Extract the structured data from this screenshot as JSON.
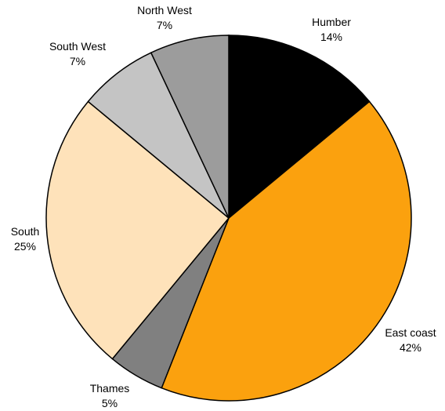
{
  "chart_data": {
    "type": "pie",
    "title": "",
    "start_angle_deg": 0,
    "direction": "clockwise",
    "slices": [
      {
        "label": "Humber",
        "value": 14,
        "value_label": "14%",
        "color": "#000000"
      },
      {
        "label": "East coast",
        "value": 42,
        "value_label": "42%",
        "color": "#FBA10E"
      },
      {
        "label": "Thames",
        "value": 5,
        "value_label": "5%",
        "color": "#808080"
      },
      {
        "label": "South",
        "value": 25,
        "value_label": "25%",
        "color": "#FEE2BA"
      },
      {
        "label": "South West",
        "value": 7,
        "value_label": "7%",
        "color": "#C4C4C4"
      },
      {
        "label": "North West",
        "value": 7,
        "value_label": "7%",
        "color": "#9C9C9C"
      }
    ]
  }
}
